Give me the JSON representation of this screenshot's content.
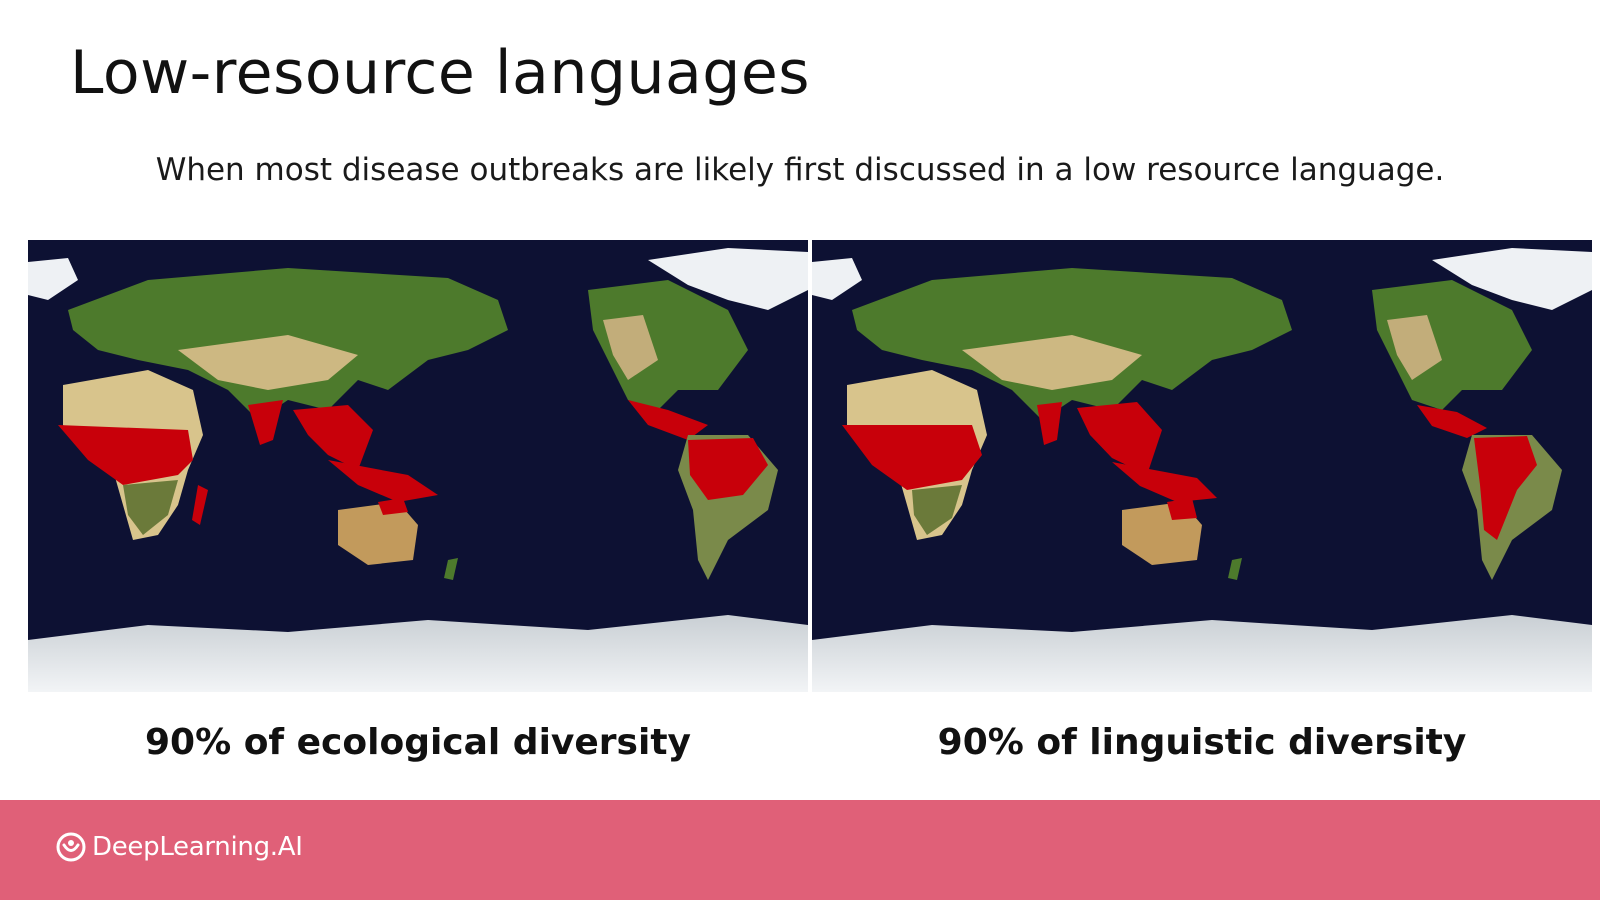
{
  "slide": {
    "title": "Low-resource languages",
    "subtitle": "When most disease outbreaks are likely first discussed in a low resource language."
  },
  "panels": [
    {
      "caption": "90% of ecological diversity"
    },
    {
      "caption": "90% of linguistic diversity"
    }
  ],
  "footer": {
    "brand": "DeepLearning.AI",
    "logo_icon": "deeplearning-logo-icon",
    "bar_color": "#e06078"
  },
  "colors": {
    "ocean": "#0d1133",
    "highlight": "#c8000a",
    "land_green": "#4d7a2c",
    "land_desert": "#d8c48c",
    "ice": "#e4e8ec"
  }
}
